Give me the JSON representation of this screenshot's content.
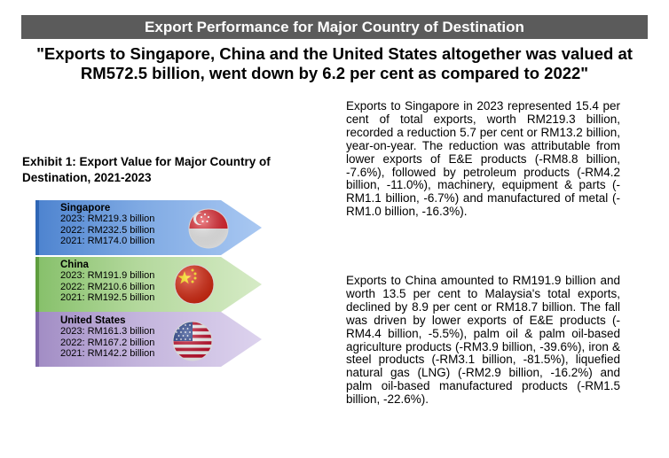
{
  "header": {
    "title": "Export Performance for Major Country of Destination",
    "headline": "\"Exports to Singapore, China and the United States altogether was valued at RM572.5 billion, went down by 6.2 per cent as compared to 2022\""
  },
  "exhibit": {
    "title": "Exhibit 1: Export Value for Major Country of Destination, 2021-2023",
    "countries": [
      {
        "name": "Singapore",
        "lines": [
          "2023: RM219.3 billion",
          "2022: RM232.5 billion",
          "2021: RM174.0 billion"
        ],
        "flag": "singapore-flag-icon",
        "color": "#4d83cf"
      },
      {
        "name": "China",
        "lines": [
          "2023: RM191.9 billion",
          "2022: RM210.6 billion",
          "2021: RM192.5 billion"
        ],
        "flag": "china-flag-icon",
        "color": "#86c06a"
      },
      {
        "name": "United States",
        "lines": [
          "2023: RM161.3 billion",
          "2022: RM167.2 billion",
          "2021: RM142.2 billion"
        ],
        "flag": "usa-flag-icon",
        "color": "#a18cc4"
      }
    ]
  },
  "body": {
    "paragraph_1": "Exports to Singapore in 2023 represented 15.4 per cent of total exports, worth RM219.3 billion, recorded a reduction 5.7 per cent or RM13.2 billion, year-on-year. The reduction was attributable from lower exports of E&E products (-RM8.8 billion, -7.6%), followed by petroleum products (-RM4.2 billion, -11.0%), machinery, equipment & parts (-RM1.1 billion, -6.7%) and manufactured of metal (-RM1.0 billion, -16.3%).",
    "paragraph_2": "Exports to China amounted to RM191.9 billion and worth 13.5 per cent to Malaysia's total exports, declined by 8.9 per cent or RM18.7 billion. The fall was driven by lower exports of E&E products (-RM4.4 billion, -5.5%), palm oil & palm oil-based agriculture products (-RM3.9 billion, -39.6%), iron & steel products (-RM3.1 billion, -81.5%), liquefied natural gas (LNG) (-RM2.9 billion, -16.2%) and palm oil-based manufactured products (-RM1.5 billion, -22.6%)."
  }
}
